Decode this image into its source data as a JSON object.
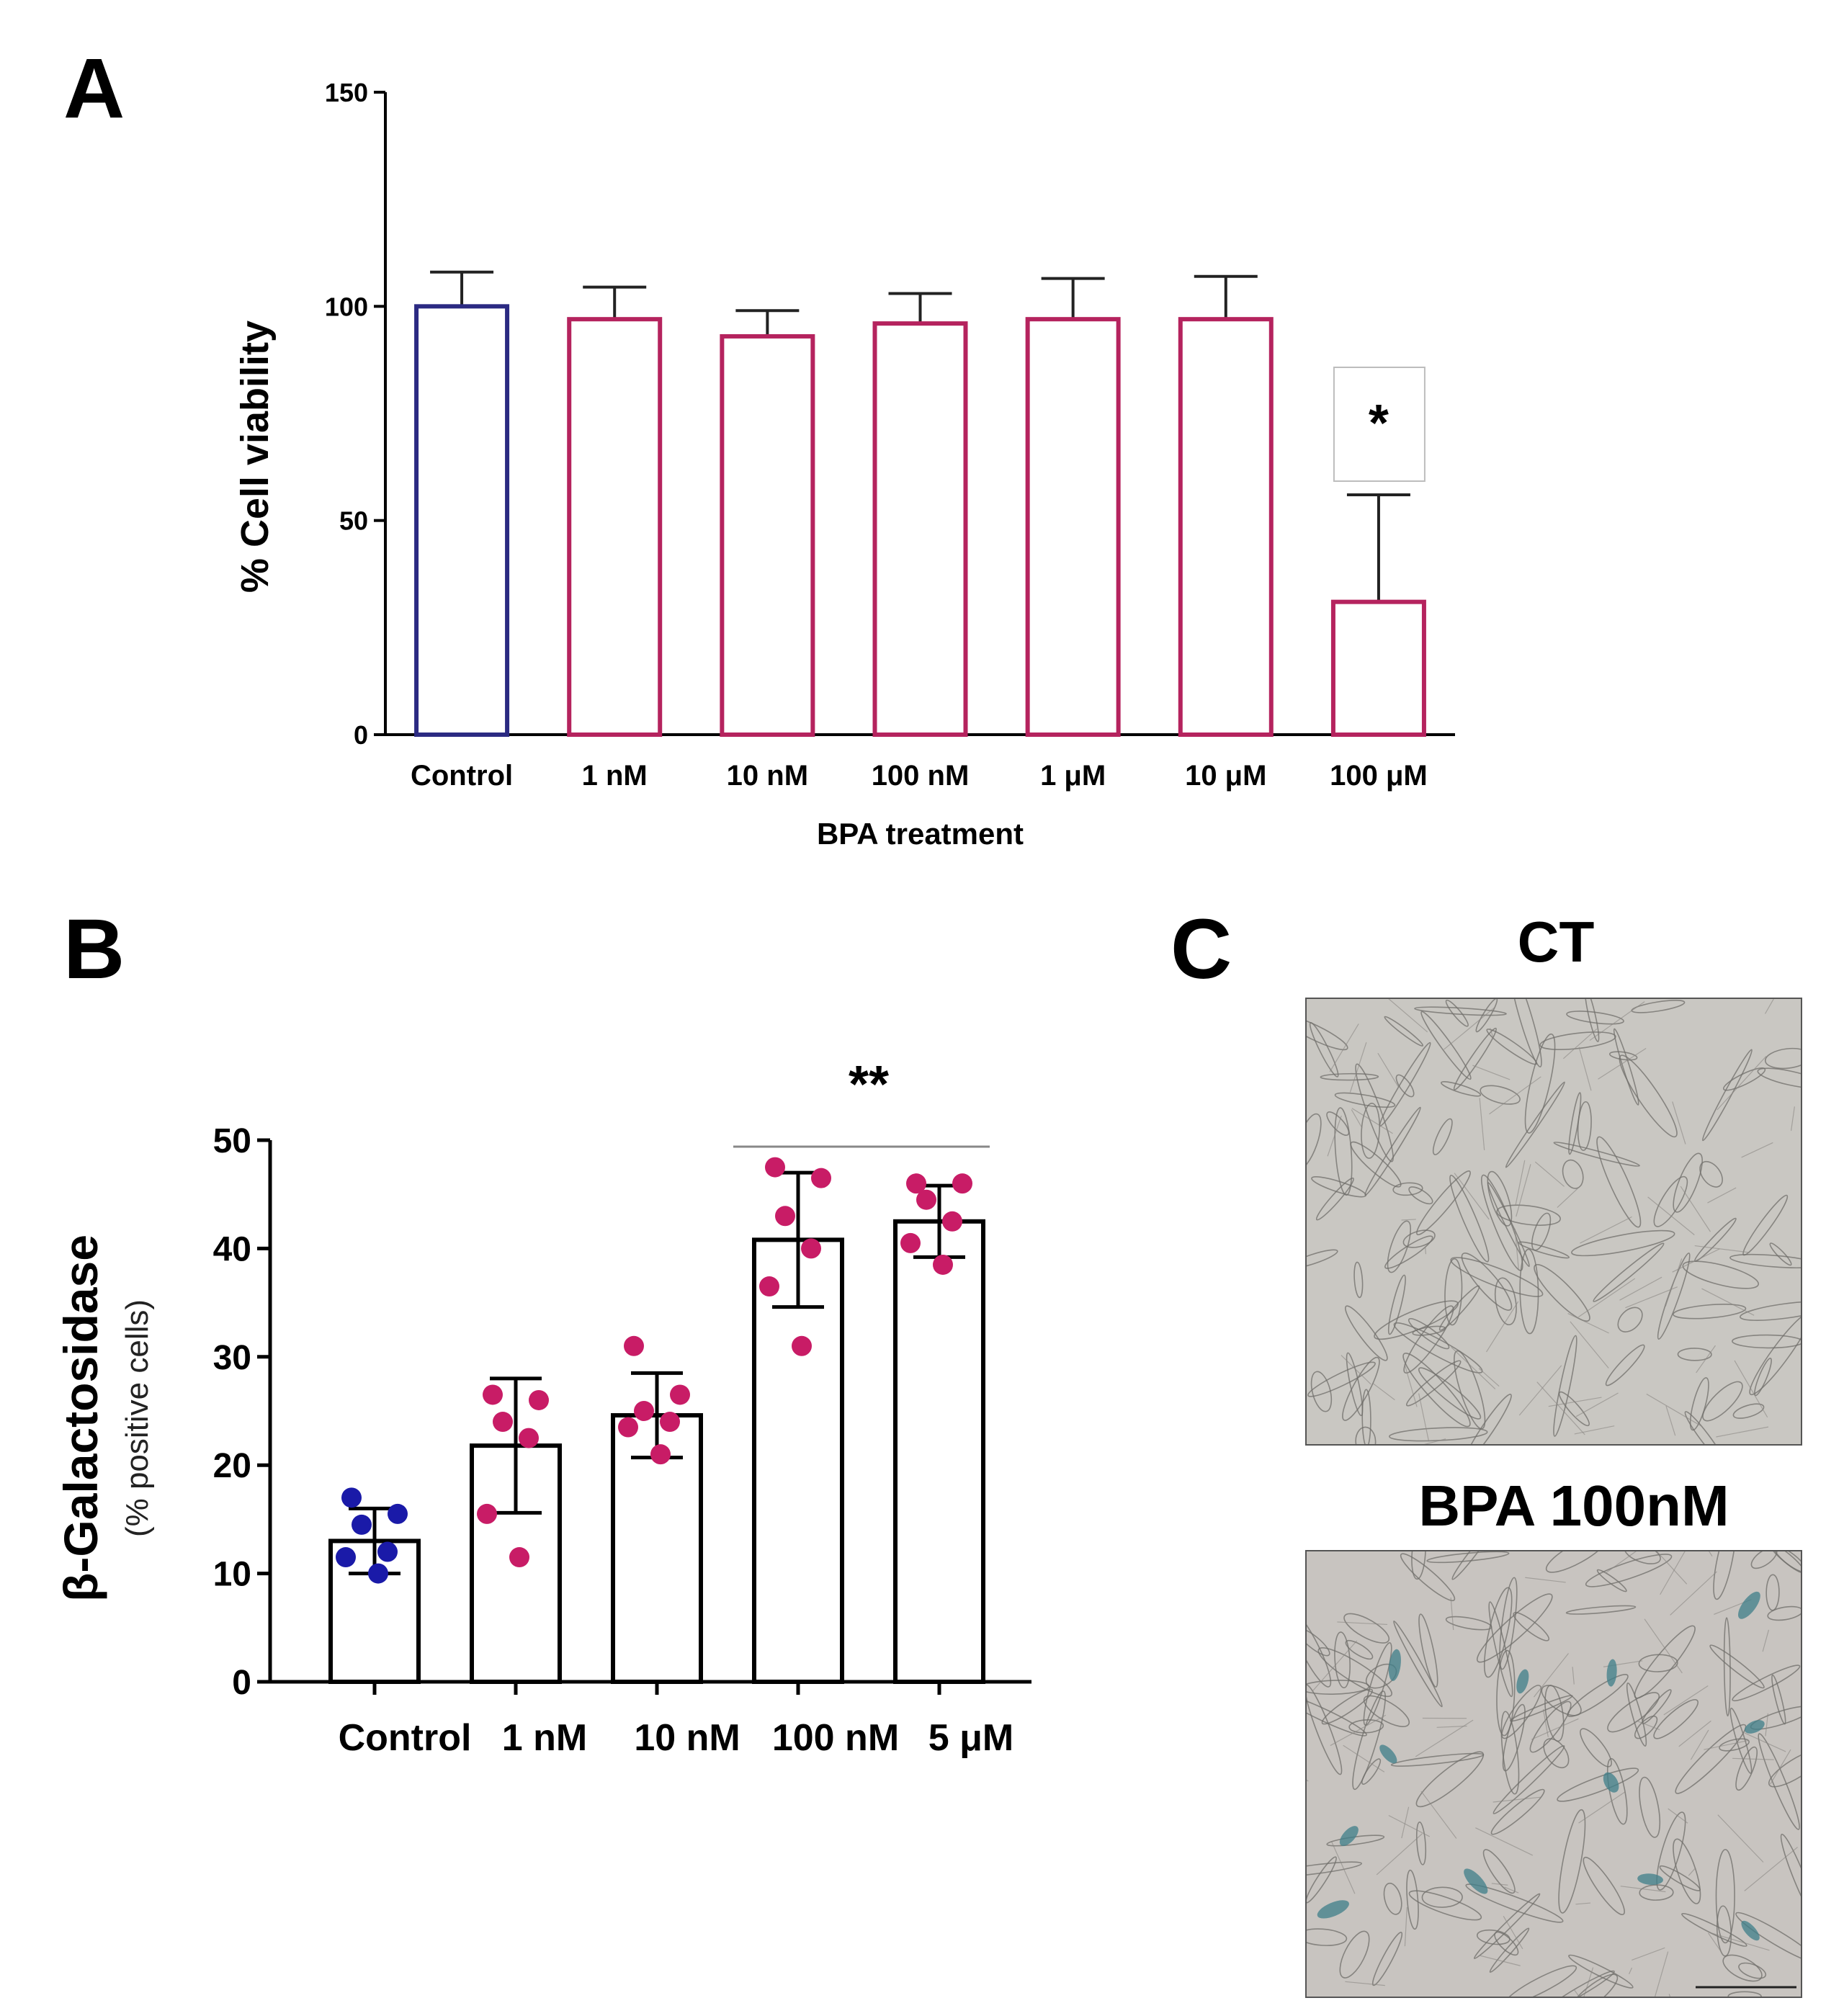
{
  "panels": {
    "a": {
      "letter": "A"
    },
    "b": {
      "letter": "B"
    },
    "c": {
      "letter": "C"
    }
  },
  "chart_data": [
    {
      "id": "A",
      "type": "bar",
      "title": "",
      "xlabel": "BPA treatment",
      "ylabel": "% Cell viability",
      "ylim": [
        0,
        150
      ],
      "yticks": [
        0,
        50,
        100,
        150
      ],
      "categories": [
        "Control",
        "1 nM",
        "10 nM",
        "100 nM",
        "1 μM",
        "10 μM",
        "100 μM"
      ],
      "values": [
        100,
        97,
        93,
        96,
        97,
        97,
        31
      ],
      "errors": [
        8,
        7.5,
        6,
        7,
        9.5,
        10,
        25
      ],
      "bar_colors": [
        "#2b2a82",
        "#b5235e",
        "#b5235e",
        "#b5235e",
        "#b5235e",
        "#b5235e",
        "#b5235e"
      ],
      "annotations": [
        {
          "category": "100 μM",
          "text": "*"
        }
      ]
    },
    {
      "id": "B",
      "type": "bar",
      "title": "",
      "xlabel": "",
      "ylabel": "β-Galactosidase",
      "ylabel_sub": "(% positive cells)",
      "ylim": [
        0,
        50
      ],
      "yticks": [
        0,
        10,
        20,
        30,
        40,
        50
      ],
      "categories": [
        "Control",
        "1 nM",
        "10 nM",
        "100 nM",
        "5 μM"
      ],
      "values": [
        13,
        21.8,
        24.6,
        40.8,
        42.5
      ],
      "errors": [
        3,
        6.2,
        3.9,
        6.2,
        3.3
      ],
      "points": [
        [
          17,
          15.5,
          14.5,
          12,
          11.5,
          10
        ],
        [
          26.5,
          26,
          24,
          22.5,
          15.5,
          11.5
        ],
        [
          31,
          26.5,
          25,
          24,
          23.5,
          21
        ],
        [
          47.5,
          46.5,
          43,
          40,
          36.5,
          31
        ],
        [
          46,
          46,
          44.5,
          42.5,
          40.5,
          38.5
        ]
      ],
      "point_colors": [
        "#1a1aa8",
        "#c81c66",
        "#c81c66",
        "#c81c66",
        "#c81c66"
      ],
      "annotations": [
        {
          "text": "**",
          "span": [
            "100 nM",
            "5 μM"
          ]
        }
      ]
    }
  ],
  "images": {
    "ct": {
      "label": "CT"
    },
    "bpa": {
      "label": "BPA 100nM"
    }
  }
}
